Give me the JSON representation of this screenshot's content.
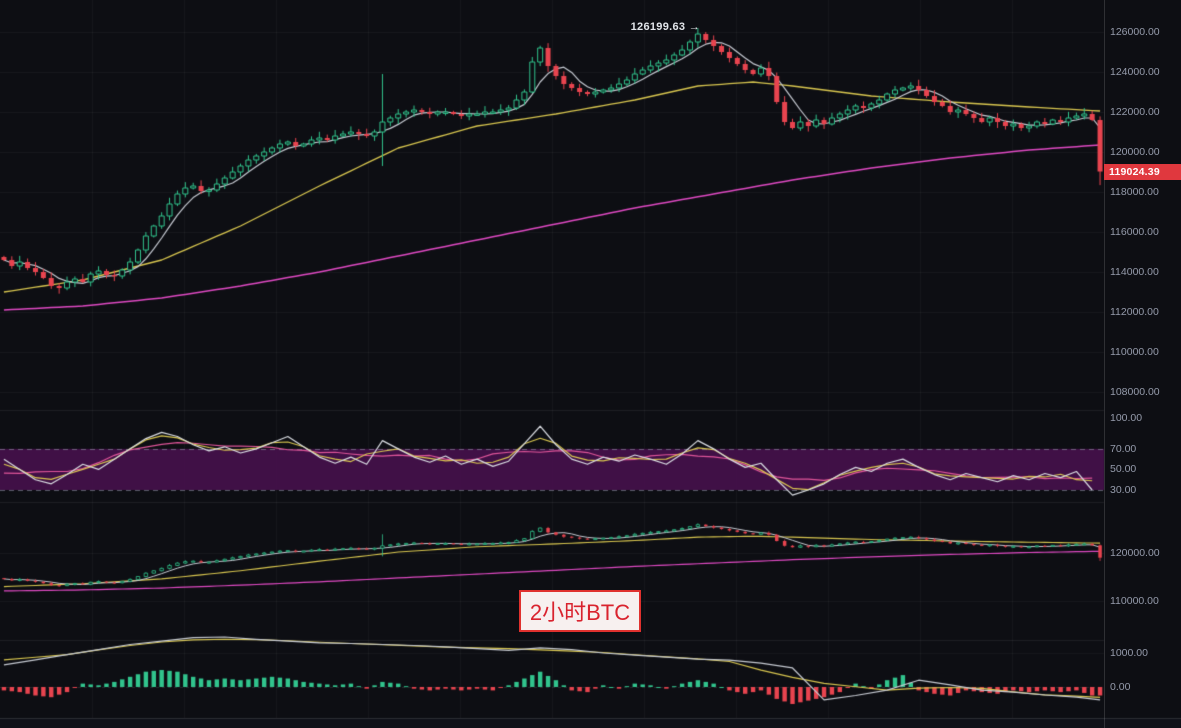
{
  "colors": {
    "background": "#0d0e13",
    "up": "#31c48d",
    "down": "#e8444f",
    "ma_fast": "#c6cad2",
    "ma_mid": "#d8c64f",
    "ma_slow": "#df49c3",
    "rsi_white": "#d9dce2",
    "rsi_yellow": "#d8c64f",
    "rsi_pink": "#e0559a",
    "band_fill": "#4a1150",
    "band_border": "#9aa0b0",
    "badge_bg": "#e0383e",
    "badge_text": "#ffffff",
    "axis_text": "#959bab",
    "label_red": "#d9232e",
    "label_bg": "#f7f0ef"
  },
  "chart_data": {
    "type": "candlestick",
    "panels": {
      "price": {
        "peak_annotation": "126199.63 →",
        "peak_price": 126199.63,
        "last_price": 119024.39,
        "last_price_label": "119024.39",
        "axis_ticks": [
          "126000.00",
          "124000.00",
          "122000.00",
          "120000.00",
          "118000.00",
          "116000.00",
          "114000.00",
          "112000.00",
          "110000.00",
          "108000.00"
        ],
        "axis_values": [
          126000,
          124000,
          122000,
          120000,
          118000,
          116000,
          114000,
          112000,
          110000,
          108000
        ],
        "closes": [
          114600,
          114300,
          114500,
          114200,
          114000,
          113700,
          113300,
          113200,
          113500,
          113650,
          113500,
          113900,
          114050,
          113850,
          113800,
          114100,
          114500,
          115100,
          115800,
          116300,
          116800,
          117400,
          117900,
          118200,
          118300,
          118050,
          118100,
          118400,
          118700,
          119000,
          119300,
          119600,
          119800,
          120000,
          120200,
          120400,
          120500,
          120300,
          120400,
          120600,
          120700,
          120600,
          120800,
          120900,
          121000,
          120900,
          120800,
          121000,
          121500,
          121700,
          121900,
          122000,
          122100,
          122000,
          121900,
          122000,
          122000,
          121900,
          121800,
          121900,
          121900,
          122000,
          122000,
          122100,
          122200,
          122600,
          123000,
          124500,
          125200,
          124300,
          123800,
          123400,
          123200,
          123000,
          122900,
          123000,
          123100,
          123200,
          123400,
          123600,
          123900,
          124100,
          124300,
          124450,
          124600,
          124850,
          125100,
          125500,
          125900,
          125600,
          125300,
          125000,
          124700,
          124400,
          124100,
          123900,
          124200,
          123800,
          122500,
          121500,
          121200,
          121500,
          121300,
          121600,
          121400,
          121700,
          121900,
          122100,
          122300,
          122200,
          122400,
          122600,
          122900,
          123100,
          123200,
          123300,
          123100,
          122800,
          122500,
          122300,
          122000,
          122100,
          121900,
          121700,
          121500,
          121700,
          121500,
          121300,
          121400,
          121200,
          121300,
          121500,
          121400,
          121600,
          121500,
          121700,
          121800,
          121900,
          121600,
          119024.39
        ],
        "ma_mid_points": [
          [
            0,
            113000
          ],
          [
            10,
            113600
          ],
          [
            20,
            114600
          ],
          [
            30,
            116300
          ],
          [
            40,
            118300
          ],
          [
            50,
            120200
          ],
          [
            60,
            121300
          ],
          [
            70,
            121900
          ],
          [
            80,
            122600
          ],
          [
            88,
            123300
          ],
          [
            95,
            123500
          ],
          [
            100,
            123300
          ],
          [
            110,
            122800
          ],
          [
            120,
            122500
          ],
          [
            130,
            122250
          ],
          [
            139,
            122050
          ]
        ],
        "ma_slow_points": [
          [
            0,
            112100
          ],
          [
            10,
            112300
          ],
          [
            20,
            112700
          ],
          [
            30,
            113300
          ],
          [
            40,
            114000
          ],
          [
            50,
            114800
          ],
          [
            60,
            115600
          ],
          [
            70,
            116400
          ],
          [
            80,
            117200
          ],
          [
            90,
            117900
          ],
          [
            100,
            118600
          ],
          [
            110,
            119200
          ],
          [
            120,
            119700
          ],
          [
            130,
            120100
          ],
          [
            139,
            120350
          ]
        ]
      },
      "rsi": {
        "axis_ticks": [
          "100.00",
          "70.00",
          "50.00",
          "30.00"
        ],
        "axis_values": [
          100,
          70,
          50,
          30
        ],
        "band": [
          30,
          70
        ],
        "values": [
          60,
          50,
          40,
          36,
          45,
          55,
          50,
          60,
          70,
          80,
          86,
          82,
          74,
          68,
          72,
          66,
          70,
          76,
          82,
          72,
          62,
          56,
          62,
          55,
          78,
          70,
          62,
          57,
          63,
          55,
          60,
          53,
          58,
          75,
          92,
          74,
          60,
          55,
          62,
          58,
          64,
          60,
          55,
          65,
          78,
          70,
          60,
          52,
          56,
          40,
          25,
          30,
          36,
          45,
          52,
          48,
          56,
          60,
          52,
          45,
          40,
          46,
          42,
          38,
          44,
          40,
          46,
          42,
          48,
          30
        ]
      },
      "mini": {
        "label": "2小时BTC",
        "axis_ticks": [
          "120000.00",
          "110000.00"
        ],
        "axis_values": [
          120000,
          110000
        ]
      },
      "volume": {
        "axis_ticks": [
          "1000.00",
          "0.00"
        ],
        "axis_values": [
          1000,
          0
        ],
        "hist": [
          -100,
          -150,
          -250,
          -300,
          -150,
          100,
          50,
          150,
          300,
          450,
          500,
          450,
          300,
          200,
          250,
          200,
          250,
          300,
          250,
          150,
          100,
          50,
          100,
          -50,
          150,
          100,
          -50,
          -100,
          -50,
          -100,
          -50,
          -100,
          50,
          250,
          450,
          200,
          -100,
          -150,
          50,
          -50,
          100,
          50,
          -50,
          100,
          200,
          100,
          -100,
          -200,
          -100,
          -350,
          -500,
          -400,
          -300,
          -150,
          100,
          -50,
          200,
          350,
          -100,
          -200,
          -250,
          -100,
          -150,
          -200,
          -100,
          -150,
          -100,
          -150,
          -100,
          -250
        ],
        "line": [
          650,
          800,
          950,
          1100,
          1250,
          1350,
          1450,
          1470,
          1400,
          1350,
          1300,
          1280,
          1250,
          1220,
          1180,
          1130,
          1080,
          1150,
          1100,
          1000,
          940,
          880,
          820,
          790,
          700,
          560,
          -380,
          -250,
          -90,
          200,
          60,
          -90,
          -150,
          -235,
          -300,
          -380
        ]
      }
    }
  }
}
